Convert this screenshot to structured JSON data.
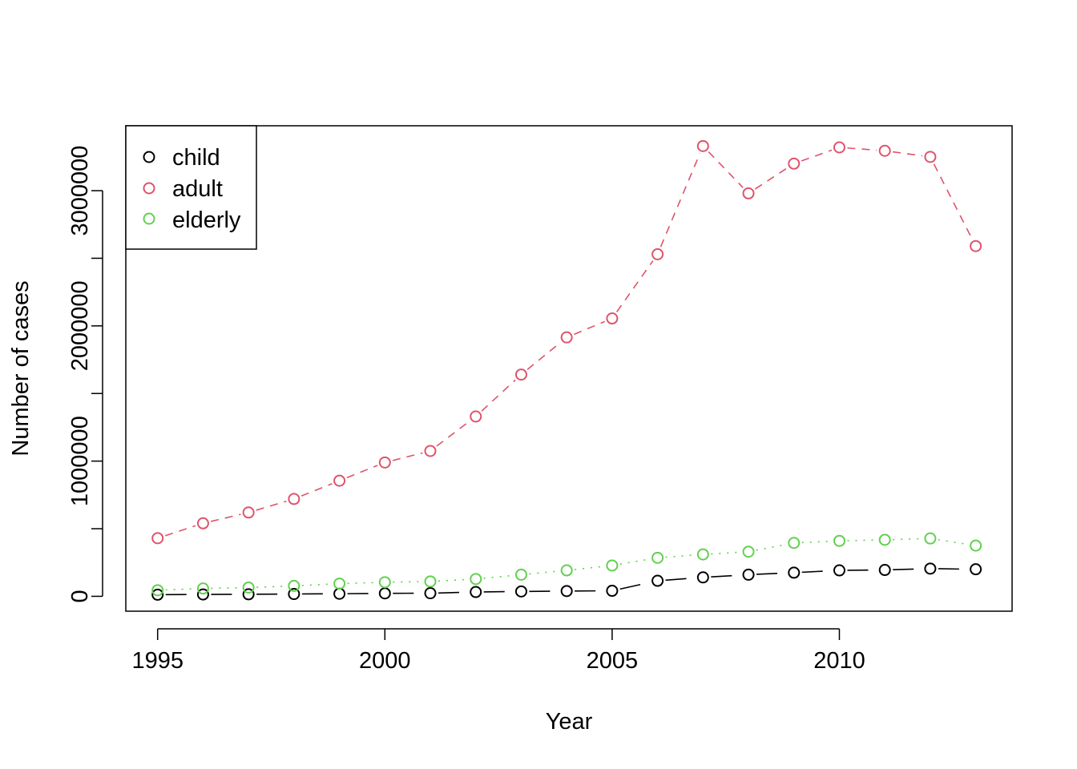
{
  "chart_data": {
    "type": "line",
    "title": "",
    "xlabel": "Year",
    "ylabel": "Number of cases",
    "x": [
      1995,
      1996,
      1997,
      1998,
      1999,
      2000,
      2001,
      2002,
      2003,
      2004,
      2005,
      2006,
      2007,
      2008,
      2009,
      2010,
      2011,
      2012,
      2013
    ],
    "xlim": [
      1994.3,
      2013.8
    ],
    "ylim": [
      -110000,
      3480000
    ],
    "x_ticks": [
      1995,
      2000,
      2005,
      2010
    ],
    "x_tick_labels": [
      "1995",
      "2000",
      "2005",
      "2010"
    ],
    "y_ticks": [
      0,
      500000,
      1000000,
      1500000,
      2000000,
      2500000,
      3000000
    ],
    "y_tick_labels": [
      "0",
      "",
      "1000000",
      "",
      "2000000",
      "",
      "3000000"
    ],
    "grid": false,
    "legend_position": "top-left",
    "series": [
      {
        "name": "child",
        "color": "#000000",
        "dash": "long-dash",
        "values": [
          12000,
          14000,
          15000,
          17000,
          19000,
          22000,
          23000,
          32000,
          36000,
          39000,
          41000,
          115000,
          140000,
          160000,
          175000,
          192000,
          195000,
          205000,
          200000
        ]
      },
      {
        "name": "adult",
        "color": "#DF536B",
        "dash": "dashed",
        "values": [
          430000,
          540000,
          620000,
          720000,
          855000,
          990000,
          1075000,
          1330000,
          1640000,
          1915000,
          2055000,
          2530000,
          3330000,
          2980000,
          3200000,
          3320000,
          3295000,
          3250000,
          2590000
        ]
      },
      {
        "name": "elderly",
        "color": "#61D04F",
        "dash": "dotted",
        "values": [
          45000,
          58000,
          65000,
          77000,
          94000,
          104000,
          110000,
          128000,
          160000,
          192000,
          228000,
          285000,
          310000,
          330000,
          395000,
          410000,
          418000,
          428000,
          375000
        ]
      }
    ]
  }
}
